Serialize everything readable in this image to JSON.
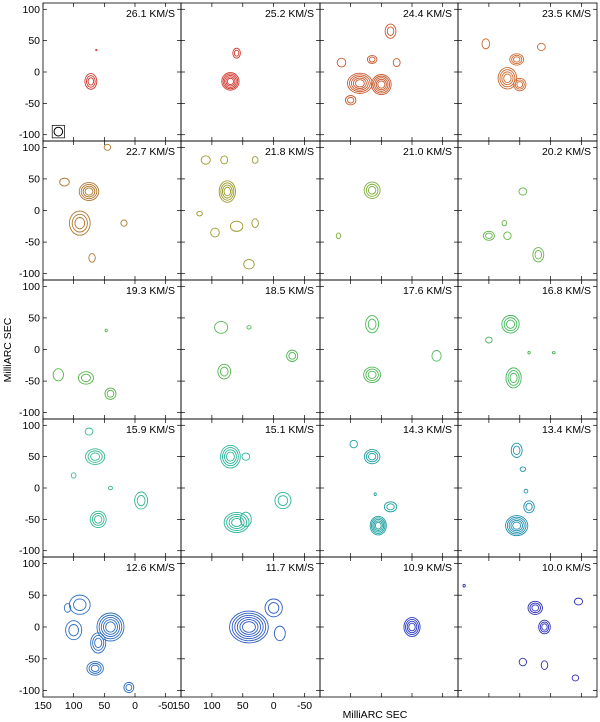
{
  "chart_data": {
    "type": "contour-channel-map",
    "xlabel": "MilliARC SEC",
    "ylabel": "MilliARC SEC",
    "xlim": [
      150,
      -75
    ],
    "ylim": [
      -110,
      110
    ],
    "xticks": [
      150,
      100,
      50,
      0,
      -50
    ],
    "yticks": [
      100,
      50,
      0,
      -50,
      -100
    ],
    "beam": {
      "x": 125,
      "y": -95,
      "r": 7
    },
    "panels": [
      {
        "label": "26.1 KM/S",
        "color": "#d23a30",
        "sources": [
          {
            "x": 72,
            "y": -15,
            "r": 11,
            "n": 3
          },
          {
            "x": 63,
            "y": 35,
            "r": 1,
            "n": 1
          }
        ]
      },
      {
        "label": "25.2 KM/S",
        "color": "#d23a30",
        "sources": [
          {
            "x": 70,
            "y": -15,
            "r": 14,
            "n": 5
          },
          {
            "x": 60,
            "y": 30,
            "r": 7,
            "n": 2
          }
        ]
      },
      {
        "label": "24.4 KM/S",
        "color": "#c8582c",
        "sources": [
          {
            "x": 85,
            "y": -18,
            "r": 18,
            "n": 5
          },
          {
            "x": 50,
            "y": -20,
            "r": 16,
            "n": 5
          },
          {
            "x": 35,
            "y": 65,
            "r": 10,
            "n": 2
          },
          {
            "x": 100,
            "y": -45,
            "r": 8,
            "n": 2
          },
          {
            "x": 25,
            "y": 15,
            "r": 6,
            "n": 1
          },
          {
            "x": 65,
            "y": 20,
            "r": 7,
            "n": 2
          },
          {
            "x": 115,
            "y": 15,
            "r": 7,
            "n": 1
          }
        ]
      },
      {
        "label": "23.5 KM/S",
        "color": "#cd6a30",
        "sources": [
          {
            "x": 70,
            "y": -10,
            "r": 16,
            "n": 4
          },
          {
            "x": 55,
            "y": 20,
            "r": 10,
            "n": 3
          },
          {
            "x": 50,
            "y": -20,
            "r": 10,
            "n": 3
          },
          {
            "x": 105,
            "y": 45,
            "r": 7,
            "n": 1
          },
          {
            "x": 15,
            "y": 40,
            "r": 6,
            "n": 1
          }
        ]
      },
      {
        "label": "22.7 KM/S",
        "color": "#b0772e",
        "sources": [
          {
            "x": 75,
            "y": 30,
            "r": 15,
            "n": 4
          },
          {
            "x": 90,
            "y": -20,
            "r": 18,
            "n": 3
          },
          {
            "x": 115,
            "y": 45,
            "r": 7,
            "n": 1
          },
          {
            "x": 18,
            "y": -20,
            "r": 5,
            "n": 1
          },
          {
            "x": 70,
            "y": -75,
            "r": 6,
            "n": 1
          },
          {
            "x": 45,
            "y": 100,
            "r": 5,
            "n": 1
          }
        ]
      },
      {
        "label": "21.8 KM/S",
        "color": "#9a9a2a",
        "sources": [
          {
            "x": 75,
            "y": 30,
            "r": 15,
            "n": 4
          },
          {
            "x": 110,
            "y": 80,
            "r": 7,
            "n": 1
          },
          {
            "x": 80,
            "y": 80,
            "r": 6,
            "n": 1
          },
          {
            "x": 60,
            "y": -25,
            "r": 9,
            "n": 1
          },
          {
            "x": 95,
            "y": -35,
            "r": 7,
            "n": 1
          },
          {
            "x": 30,
            "y": -20,
            "r": 6,
            "n": 1
          },
          {
            "x": 40,
            "y": -85,
            "r": 8,
            "n": 1
          },
          {
            "x": 30,
            "y": 80,
            "r": 5,
            "n": 1
          },
          {
            "x": 120,
            "y": -5,
            "r": 4,
            "n": 1
          }
        ]
      },
      {
        "label": "21.0 KM/S",
        "color": "#7db03a",
        "sources": [
          {
            "x": 65,
            "y": 32,
            "r": 13,
            "n": 3
          },
          {
            "x": 120,
            "y": -40,
            "r": 4,
            "n": 1
          }
        ]
      },
      {
        "label": "20.2 KM/S",
        "color": "#66b54a",
        "sources": [
          {
            "x": 100,
            "y": -40,
            "r": 8,
            "n": 2
          },
          {
            "x": 70,
            "y": -40,
            "r": 6,
            "n": 1
          },
          {
            "x": 20,
            "y": -70,
            "r": 10,
            "n": 2
          },
          {
            "x": 45,
            "y": 30,
            "r": 6,
            "n": 1
          },
          {
            "x": 75,
            "y": -20,
            "r": 4,
            "n": 1
          }
        ]
      },
      {
        "label": "19.3 KM/S",
        "color": "#55b54a",
        "sources": [
          {
            "x": 125,
            "y": -40,
            "r": 9,
            "n": 1
          },
          {
            "x": 80,
            "y": -45,
            "r": 11,
            "n": 2
          },
          {
            "x": 40,
            "y": -70,
            "r": 9,
            "n": 2
          },
          {
            "x": 47,
            "y": 30,
            "r": 2,
            "n": 1
          }
        ]
      },
      {
        "label": "18.5 KM/S",
        "color": "#4fb54f",
        "sources": [
          {
            "x": 85,
            "y": 35,
            "r": 10,
            "n": 1
          },
          {
            "x": 80,
            "y": -35,
            "r": 11,
            "n": 2
          },
          {
            "x": 40,
            "y": 35,
            "r": 3,
            "n": 1
          },
          {
            "x": -30,
            "y": -10,
            "r": 9,
            "n": 2
          }
        ]
      },
      {
        "label": "17.6 KM/S",
        "color": "#4db855",
        "sources": [
          {
            "x": 65,
            "y": 40,
            "r": 12,
            "n": 2
          },
          {
            "x": 65,
            "y": -40,
            "r": 13,
            "n": 3
          },
          {
            "x": -40,
            "y": -10,
            "r": 8,
            "n": 1
          }
        ]
      },
      {
        "label": "16.8 KM/S",
        "color": "#45b75a",
        "sources": [
          {
            "x": 65,
            "y": 40,
            "r": 14,
            "n": 3
          },
          {
            "x": 60,
            "y": -45,
            "r": 14,
            "n": 3
          },
          {
            "x": 100,
            "y": 15,
            "r": 5,
            "n": 1
          },
          {
            "x": 35,
            "y": -5,
            "r": 2,
            "n": 1
          },
          {
            "x": -5,
            "y": -5,
            "r": 2,
            "n": 1
          }
        ]
      },
      {
        "label": "15.9 KM/S",
        "color": "#35b88f",
        "sources": [
          {
            "x": 65,
            "y": 50,
            "r": 14,
            "n": 3
          },
          {
            "x": 60,
            "y": -50,
            "r": 13,
            "n": 3
          },
          {
            "x": -10,
            "y": -20,
            "r": 12,
            "n": 2
          },
          {
            "x": 75,
            "y": 90,
            "r": 6,
            "n": 1
          },
          {
            "x": 100,
            "y": 20,
            "r": 4,
            "n": 1
          },
          {
            "x": 40,
            "y": 0,
            "r": 3,
            "n": 1
          }
        ]
      },
      {
        "label": "15.1 KM/S",
        "color": "#2ab598",
        "sources": [
          {
            "x": 70,
            "y": 50,
            "r": 17,
            "n": 4
          },
          {
            "x": 60,
            "y": -55,
            "r": 18,
            "n": 4
          },
          {
            "x": -15,
            "y": -20,
            "r": 13,
            "n": 2
          },
          {
            "x": 45,
            "y": -50,
            "r": 10,
            "n": 1
          },
          {
            "x": 45,
            "y": 50,
            "r": 6,
            "n": 1
          }
        ]
      },
      {
        "label": "14.3 KM/S",
        "color": "#1ea0a0",
        "sources": [
          {
            "x": 65,
            "y": 50,
            "r": 12,
            "n": 3
          },
          {
            "x": 55,
            "y": -60,
            "r": 14,
            "n": 5
          },
          {
            "x": 35,
            "y": -30,
            "r": 9,
            "n": 2
          },
          {
            "x": 95,
            "y": 70,
            "r": 6,
            "n": 1
          },
          {
            "x": 60,
            "y": -10,
            "r": 2,
            "n": 1
          }
        ]
      },
      {
        "label": "13.4 KM/S",
        "color": "#2290b0",
        "sources": [
          {
            "x": 55,
            "y": 60,
            "r": 10,
            "n": 2
          },
          {
            "x": 55,
            "y": -60,
            "r": 17,
            "n": 5
          },
          {
            "x": 35,
            "y": -30,
            "r": 9,
            "n": 2
          },
          {
            "x": 45,
            "y": 30,
            "r": 4,
            "n": 1
          },
          {
            "x": 40,
            "y": -5,
            "r": 3,
            "n": 1
          }
        ]
      },
      {
        "label": "12.6 KM/S",
        "color": "#2e6ec0",
        "sources": [
          {
            "x": 40,
            "y": 0,
            "r": 22,
            "n": 5
          },
          {
            "x": 60,
            "y": -25,
            "r": 14,
            "n": 3
          },
          {
            "x": 90,
            "y": 35,
            "r": 16,
            "n": 2
          },
          {
            "x": 100,
            "y": -5,
            "r": 14,
            "n": 2
          },
          {
            "x": 65,
            "y": -65,
            "r": 12,
            "n": 3
          },
          {
            "x": 10,
            "y": -95,
            "r": 8,
            "n": 2
          },
          {
            "x": 110,
            "y": 30,
            "r": 6,
            "n": 1
          }
        ]
      },
      {
        "label": "11.7 KM/S",
        "color": "#2f5cc4",
        "sources": [
          {
            "x": 40,
            "y": 0,
            "r": 28,
            "n": 6
          },
          {
            "x": 0,
            "y": 30,
            "r": 14,
            "n": 2
          },
          {
            "x": -10,
            "y": -10,
            "r": 10,
            "n": 1
          }
        ]
      },
      {
        "label": "10.9 KM/S",
        "color": "#2838c4",
        "sources": [
          {
            "x": 0,
            "y": 0,
            "r": 14,
            "n": 4
          }
        ]
      },
      {
        "label": "10.0 KM/S",
        "color": "#3030b8",
        "sources": [
          {
            "x": 25,
            "y": 30,
            "r": 11,
            "n": 3
          },
          {
            "x": 10,
            "y": 0,
            "r": 10,
            "n": 3
          },
          {
            "x": -45,
            "y": 40,
            "r": 6,
            "n": 1
          },
          {
            "x": 45,
            "y": -55,
            "r": 6,
            "n": 1
          },
          {
            "x": 10,
            "y": -60,
            "r": 6,
            "n": 1
          },
          {
            "x": -40,
            "y": -80,
            "r": 5,
            "n": 1
          },
          {
            "x": 140,
            "y": 65,
            "r": 2,
            "n": 1
          }
        ]
      }
    ]
  }
}
